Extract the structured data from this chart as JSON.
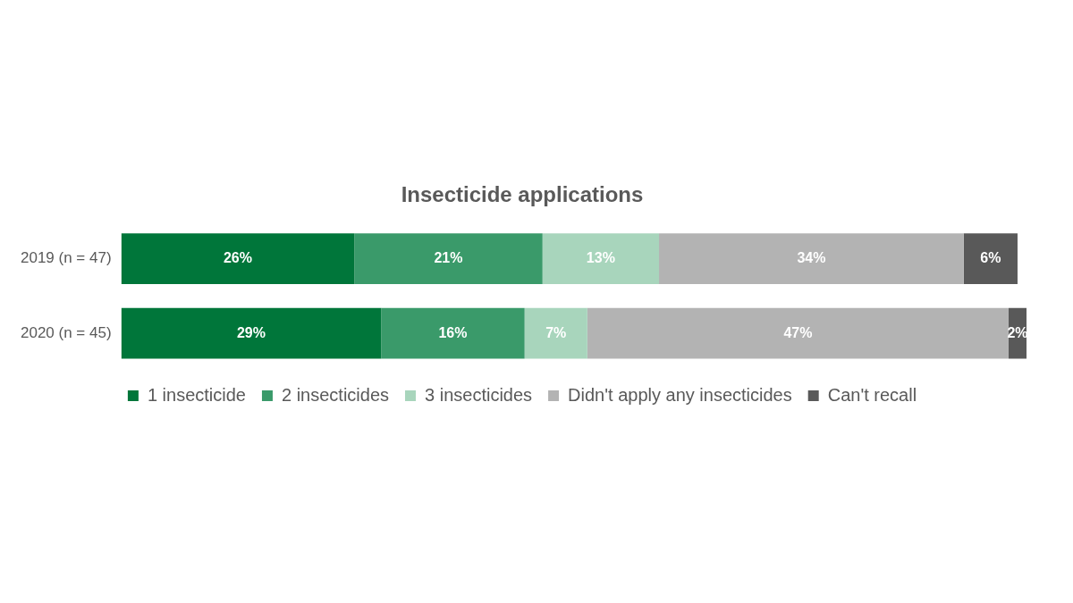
{
  "chart_data": {
    "type": "bar",
    "orientation": "horizontal",
    "stacked": true,
    "title": "Insecticide applications",
    "categories": [
      "2019 (n = 47)",
      "2020 (n = 45)"
    ],
    "series": [
      {
        "name": "1 insecticide",
        "color": "#00763a",
        "values": [
          26,
          29
        ],
        "value_labels": [
          "26%",
          "29%"
        ]
      },
      {
        "name": "2 insecticides",
        "color": "#3a9a6a",
        "values": [
          21,
          16
        ],
        "value_labels": [
          "21%",
          "16%"
        ]
      },
      {
        "name": "3 insecticides",
        "color": "#a8d5bc",
        "values": [
          13,
          7
        ],
        "value_labels": [
          "13%",
          "7%"
        ]
      },
      {
        "name": "Didn't apply any insecticides",
        "color": "#b3b3b3",
        "values": [
          34,
          47
        ],
        "value_labels": [
          "34%",
          "47%"
        ]
      },
      {
        "name": "Can't recall",
        "color": "#595959",
        "values": [
          6,
          2
        ],
        "value_labels": [
          "6%",
          "2%"
        ]
      }
    ],
    "legend": "bottom",
    "tick_labels": "y"
  }
}
